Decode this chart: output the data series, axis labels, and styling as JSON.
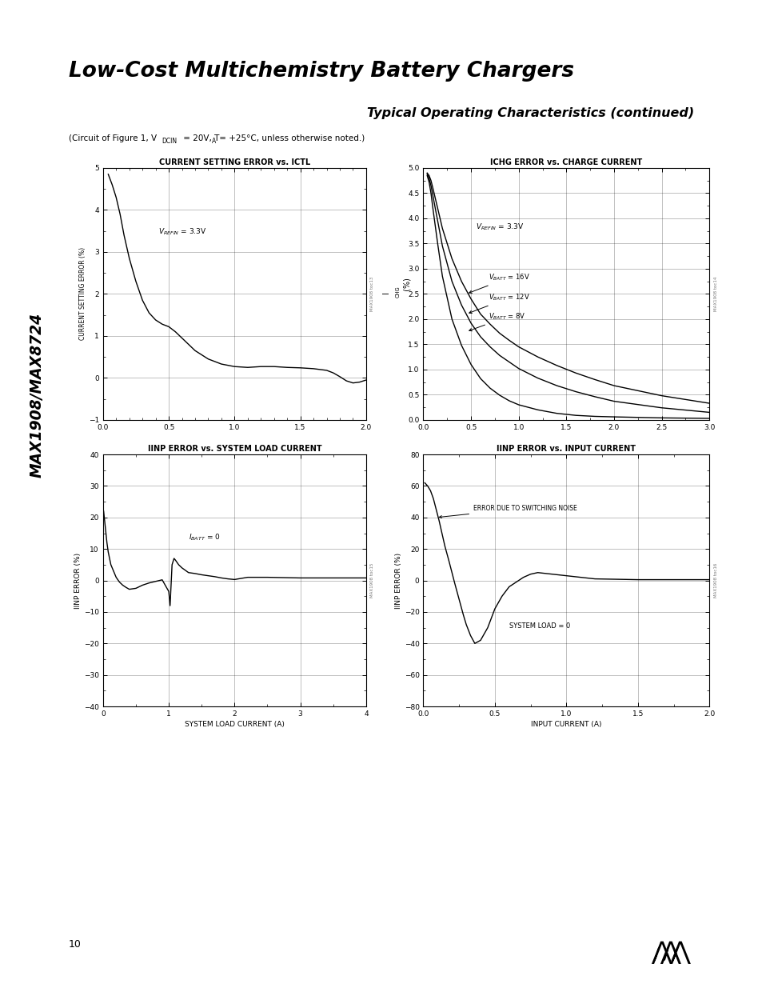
{
  "page_title": "Low-Cost Multichemistry Battery Chargers",
  "section_title": "Typical Operating Characteristics (continued)",
  "left_label": "MAX1908/MAX8724",
  "footer_page": "10",
  "background_color": "#ffffff",
  "plot1": {
    "title": "CURRENT SETTING ERROR vs. ICTL",
    "ylabel": "CURRENT SETTING ERROR (%)",
    "xlim": [
      0,
      2.0
    ],
    "ylim": [
      -1,
      5
    ],
    "xticks": [
      0,
      0.5,
      1.0,
      1.5,
      2.0
    ],
    "yticks": [
      -1,
      0,
      1,
      2,
      3,
      4,
      5
    ],
    "watermark": "MAX1908 toc13",
    "curve_x": [
      0.04,
      0.07,
      0.1,
      0.13,
      0.16,
      0.2,
      0.25,
      0.3,
      0.35,
      0.4,
      0.45,
      0.5,
      0.55,
      0.6,
      0.65,
      0.7,
      0.75,
      0.8,
      0.9,
      1.0,
      1.1,
      1.2,
      1.3,
      1.4,
      1.5,
      1.6,
      1.7,
      1.75,
      1.8,
      1.85,
      1.9,
      1.95,
      2.0
    ],
    "curve_y": [
      4.85,
      4.6,
      4.3,
      3.9,
      3.4,
      2.85,
      2.3,
      1.85,
      1.55,
      1.38,
      1.28,
      1.22,
      1.1,
      0.95,
      0.8,
      0.65,
      0.55,
      0.45,
      0.33,
      0.27,
      0.25,
      0.27,
      0.27,
      0.25,
      0.24,
      0.22,
      0.18,
      0.12,
      0.03,
      -0.07,
      -0.12,
      -0.1,
      -0.05
    ]
  },
  "plot2": {
    "title": "ICHG ERROR vs. CHARGE CURRENT",
    "ylabel": "ICHG (%)",
    "xlim": [
      0,
      3.0
    ],
    "ylim": [
      0,
      5.0
    ],
    "xticks": [
      0,
      0.5,
      1.0,
      1.5,
      2.0,
      2.5,
      3.0
    ],
    "yticks": [
      0,
      0.5,
      1.0,
      1.5,
      2.0,
      2.5,
      3.0,
      3.5,
      4.0,
      4.5,
      5.0
    ],
    "watermark": "MAX1908 toc14",
    "curve16_x": [
      0.04,
      0.06,
      0.08,
      0.1,
      0.15,
      0.2,
      0.3,
      0.4,
      0.5,
      0.6,
      0.7,
      0.8,
      0.9,
      1.0,
      1.2,
      1.4,
      1.6,
      1.8,
      2.0,
      2.5,
      3.0
    ],
    "curve16_y": [
      4.9,
      4.85,
      4.75,
      4.6,
      4.2,
      3.8,
      3.2,
      2.75,
      2.4,
      2.1,
      1.9,
      1.72,
      1.58,
      1.45,
      1.25,
      1.08,
      0.93,
      0.8,
      0.68,
      0.48,
      0.33
    ],
    "curve12_x": [
      0.04,
      0.06,
      0.08,
      0.1,
      0.15,
      0.2,
      0.3,
      0.4,
      0.5,
      0.6,
      0.7,
      0.8,
      0.9,
      1.0,
      1.2,
      1.4,
      1.6,
      1.8,
      2.0,
      2.5,
      3.0
    ],
    "curve12_y": [
      4.88,
      4.8,
      4.65,
      4.45,
      3.95,
      3.45,
      2.75,
      2.28,
      1.92,
      1.65,
      1.45,
      1.28,
      1.15,
      1.02,
      0.83,
      0.68,
      0.56,
      0.46,
      0.37,
      0.24,
      0.15
    ],
    "curve8_x": [
      0.04,
      0.06,
      0.08,
      0.1,
      0.15,
      0.2,
      0.3,
      0.4,
      0.5,
      0.6,
      0.7,
      0.8,
      0.9,
      1.0,
      1.2,
      1.4,
      1.6,
      1.8,
      2.0,
      2.5,
      3.0
    ],
    "curve8_y": [
      4.85,
      4.72,
      4.5,
      4.2,
      3.5,
      2.85,
      2.0,
      1.48,
      1.1,
      0.82,
      0.63,
      0.49,
      0.38,
      0.3,
      0.2,
      0.13,
      0.09,
      0.07,
      0.06,
      0.04,
      0.03
    ]
  },
  "plot3": {
    "title": "IINP ERROR vs. SYSTEM LOAD CURRENT",
    "xlabel": "SYSTEM LOAD CURRENT (A)",
    "ylabel": "IINP ERROR (%)",
    "xlim": [
      0,
      4
    ],
    "ylim": [
      -40,
      40
    ],
    "xticks": [
      0,
      1,
      2,
      3,
      4
    ],
    "yticks": [
      -40,
      -30,
      -20,
      -10,
      0,
      10,
      20,
      30,
      40
    ],
    "watermark": "MAX1908 toc15",
    "curve_x": [
      0.01,
      0.02,
      0.04,
      0.06,
      0.08,
      0.1,
      0.12,
      0.15,
      0.18,
      0.2,
      0.25,
      0.3,
      0.35,
      0.4,
      0.5,
      0.6,
      0.7,
      0.8,
      0.9,
      1.0,
      1.02,
      1.05,
      1.08,
      1.1,
      1.15,
      1.2,
      1.3,
      1.4,
      1.5,
      1.6,
      1.7,
      1.8,
      1.9,
      2.0,
      2.2,
      2.5,
      3.0,
      3.5,
      4.0
    ],
    "curve_y": [
      22,
      20,
      16,
      12,
      9,
      7,
      5,
      3.5,
      2,
      1,
      -0.5,
      -1.5,
      -2.2,
      -2.8,
      -2.5,
      -1.5,
      -0.8,
      -0.3,
      0.2,
      -3.5,
      -8,
      5,
      7,
      6.5,
      5,
      4,
      2.5,
      2.2,
      1.8,
      1.5,
      1.2,
      0.8,
      0.5,
      0.3,
      1.0,
      1.0,
      0.8,
      0.8,
      0.8
    ]
  },
  "plot4": {
    "title": "IINP ERROR vs. INPUT CURRENT",
    "xlabel": "INPUT CURRENT (A)",
    "ylabel": "IINP ERROR (%)",
    "xlim": [
      0,
      2.0
    ],
    "ylim": [
      -80,
      80
    ],
    "xticks": [
      0,
      0.5,
      1.0,
      1.5,
      2.0
    ],
    "yticks": [
      -80,
      -60,
      -40,
      -20,
      0,
      20,
      40,
      60,
      80
    ],
    "watermark": "MAX1908 toc16",
    "curve_x": [
      0.01,
      0.03,
      0.05,
      0.07,
      0.09,
      0.11,
      0.13,
      0.15,
      0.18,
      0.2,
      0.22,
      0.25,
      0.28,
      0.3,
      0.33,
      0.36,
      0.4,
      0.45,
      0.5,
      0.55,
      0.6,
      0.65,
      0.7,
      0.75,
      0.8,
      0.9,
      1.0,
      1.2,
      1.5,
      2.0
    ],
    "curve_y": [
      62,
      60,
      57,
      52,
      45,
      38,
      30,
      22,
      12,
      5,
      -2,
      -12,
      -22,
      -28,
      -35,
      -40,
      -38,
      -30,
      -18,
      -10,
      -4,
      -1,
      2,
      4,
      5,
      4,
      3,
      1,
      0.5,
      0.5
    ]
  }
}
